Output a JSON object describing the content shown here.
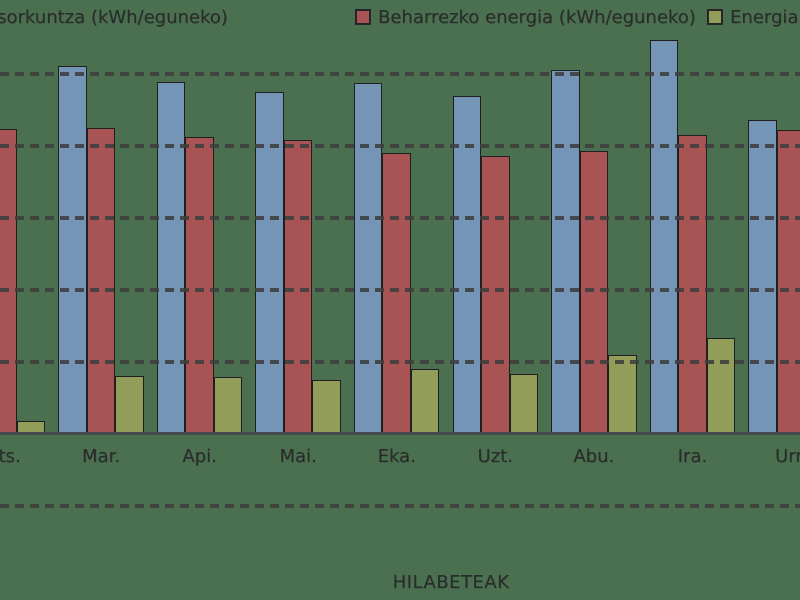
{
  "page": {
    "background_color": "#4a7050"
  },
  "legend": {
    "items": [
      {
        "label": "Energia sorkuntza (kWh/eguneko)",
        "swatch_color": "#7495b5"
      },
      {
        "label": "Beharrezko energia (kWh/eguneko)",
        "swatch_color": "#a85454"
      },
      {
        "label": "Energia balantzea (kWh/eguneko)",
        "swatch_color": "#929d5a"
      }
    ]
  },
  "chart_data": {
    "type": "bar",
    "title": "",
    "xlabel": "HILABETEAK",
    "ylabel": "",
    "categories": [
      "Ots.",
      "Mar.",
      "Api.",
      "Mai.",
      "Eka.",
      "Uzt.",
      "Abu.",
      "Ira.",
      "Urr."
    ],
    "series": [
      {
        "name": "Energia sorkuntza (kWh/eguneko)",
        "color": "#7495b5",
        "values": [
          null,
          5.1,
          4.88,
          4.75,
          4.87,
          4.69,
          5.05,
          5.46,
          4.35
        ]
      },
      {
        "name": "Beharrezko energia (kWh/eguneko)",
        "color": "#a85454",
        "values": [
          4.23,
          4.25,
          4.12,
          4.07,
          3.89,
          3.85,
          3.93,
          4.15,
          4.22
        ]
      },
      {
        "name": "Energia balantzea (kWh/eguneko)",
        "color": "#929d5a",
        "values": [
          0.18,
          0.8,
          0.78,
          0.75,
          0.9,
          0.83,
          1.09,
          1.33,
          null
        ]
      }
    ],
    "y_axis": {
      "tick_labels_visible": false,
      "unit": "gridline units (y-axis tick labels cropped out of frame; values estimated from dashed gridlines)",
      "gridlines_visible_above_zero": 5,
      "gridlines_visible_below_zero": 1,
      "ylim": [
        -1.15,
        6.0
      ]
    },
    "grid": "dashed-horizontal",
    "legend_position": "top",
    "crop_note": "Chart cropped at frame edges: 'Ots.' first-series bar and 'Urr.' third-series bar out of frame (null)."
  },
  "colors": {
    "gridline": "#3e3e3e",
    "axis_line": "#45494b",
    "text": "#2b2b2b",
    "bar_outline": "#1f1f1f"
  }
}
